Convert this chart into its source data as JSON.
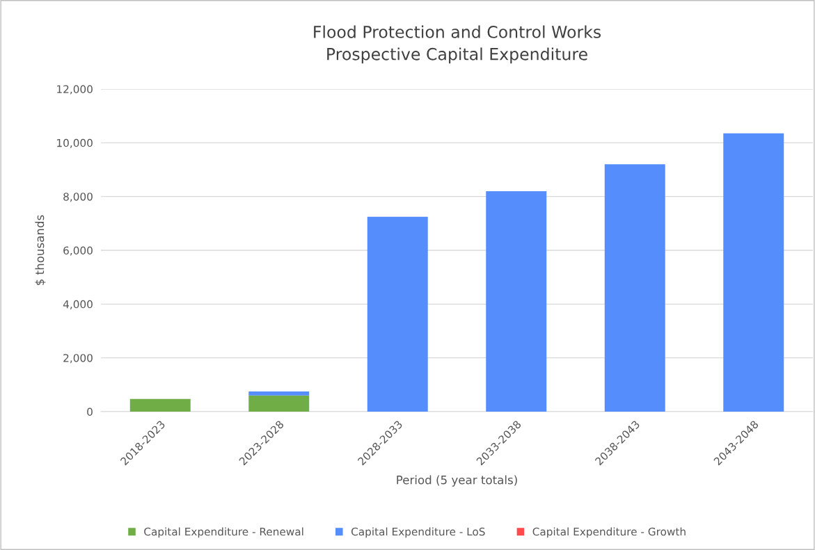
{
  "chart_data": {
    "type": "bar",
    "stacked": true,
    "title": "Flood Protection and Control Works\nProspective Capital Expenditure",
    "xlabel": "Period (5 year totals)",
    "ylabel": "$ thousands",
    "categories": [
      "2018-2023",
      "2023-2028",
      "2028-2033",
      "2033-2038",
      "2038-2043",
      "2043-2048"
    ],
    "series": [
      {
        "name": "Capital Expenditure - Renewal",
        "color": "#70ad47",
        "values": [
          470,
          600,
          0,
          0,
          0,
          0
        ]
      },
      {
        "name": "Capital Expenditure - LoS",
        "color": "#558dfc",
        "values": [
          0,
          150,
          7250,
          8200,
          9200,
          10350
        ]
      },
      {
        "name": "Capital Expenditure - Growth",
        "color": "#ff4b4b",
        "values": [
          0,
          0,
          0,
          0,
          0,
          0
        ]
      }
    ],
    "ylim": [
      0,
      12000
    ],
    "yticks": [
      {
        "value": 0,
        "label": "0"
      },
      {
        "value": 2000,
        "label": "2,000"
      },
      {
        "value": 4000,
        "label": "4,000"
      },
      {
        "value": 6000,
        "label": "6,000"
      },
      {
        "value": 8000,
        "label": "8,000"
      },
      {
        "value": 10000,
        "label": "10,000"
      },
      {
        "value": 12000,
        "label": "12,000"
      }
    ],
    "grid": "y",
    "legend": "bottom"
  }
}
